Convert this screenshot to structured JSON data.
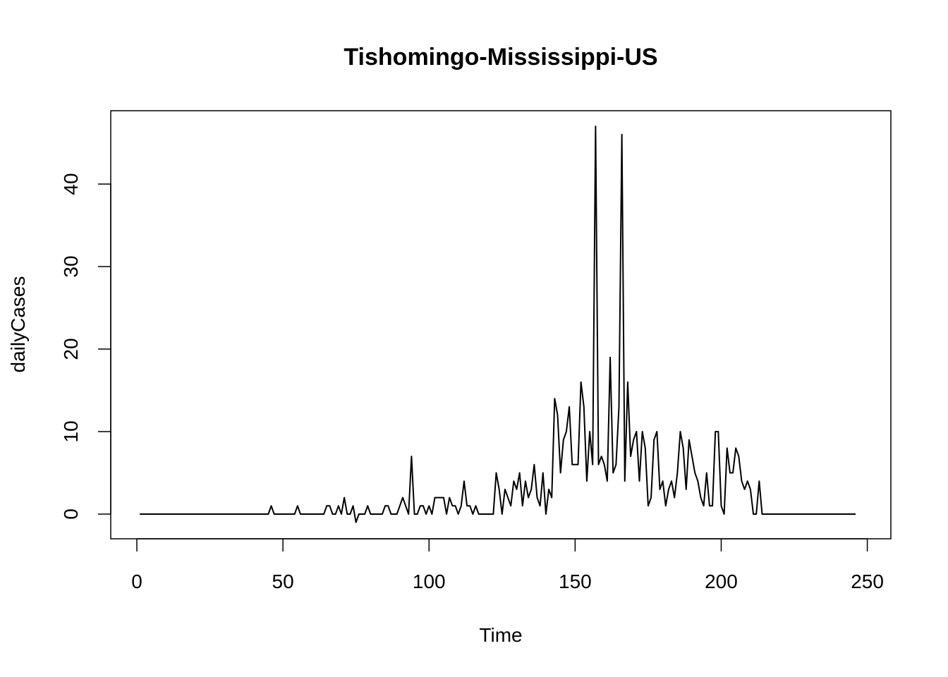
{
  "chart_data": {
    "type": "line",
    "title": "Tishomingo-Mississippi-US",
    "xlabel": "Time",
    "ylabel": "dailyCases",
    "xlim": [
      1,
      248
    ],
    "ylim": [
      -1,
      47
    ],
    "xticks": [
      0,
      50,
      100,
      150,
      200,
      250
    ],
    "xtick_labels": [
      "0",
      "50",
      "100",
      "150",
      "200",
      "250"
    ],
    "yticks": [
      0,
      10,
      20,
      30,
      40
    ],
    "ytick_labels": [
      "0",
      "10",
      "20",
      "30",
      "40"
    ],
    "grid": false,
    "line_color": "#000000",
    "series": [
      {
        "x_start": 1,
        "values": [
          0,
          0,
          0,
          0,
          0,
          0,
          0,
          0,
          0,
          0,
          0,
          0,
          0,
          0,
          0,
          0,
          0,
          0,
          0,
          0,
          0,
          0,
          0,
          0,
          0,
          0,
          0,
          0,
          0,
          0,
          0,
          0,
          0,
          0,
          0,
          0,
          0,
          0,
          0,
          0,
          0,
          0,
          0,
          0,
          0,
          1,
          0,
          0,
          0,
          0,
          0,
          0,
          0,
          0,
          1,
          0,
          0,
          0,
          0,
          0,
          0,
          0,
          0,
          0,
          1,
          1,
          0,
          0,
          1,
          0,
          2,
          0,
          0,
          1,
          -1,
          0,
          0,
          0,
          1,
          0,
          0,
          0,
          0,
          0,
          1,
          1,
          0,
          0,
          0,
          1,
          2,
          1,
          0,
          7,
          0,
          0,
          1,
          1,
          0,
          1,
          0,
          2,
          2,
          2,
          2,
          0,
          2,
          1,
          1,
          0,
          1,
          4,
          1,
          1,
          0,
          1,
          0,
          0,
          0,
          0,
          0,
          0,
          5,
          3,
          0,
          3,
          2,
          1,
          4,
          3,
          5,
          1,
          4,
          2,
          3,
          6,
          2,
          1,
          5,
          0,
          3,
          2,
          14,
          12,
          5,
          9,
          10,
          13,
          6,
          6,
          6,
          16,
          13,
          4,
          10,
          6,
          47,
          6,
          7,
          6,
          4,
          19,
          5,
          6,
          13,
          46,
          4,
          16,
          7,
          9,
          10,
          4,
          10,
          8,
          1,
          2,
          9,
          10,
          3,
          4,
          1,
          3,
          4,
          2,
          5,
          10,
          8,
          3,
          9,
          7,
          5,
          4,
          2,
          1,
          5,
          1,
          1,
          10,
          10,
          1,
          0,
          8,
          5,
          5,
          8,
          7,
          4,
          3,
          4,
          3,
          0,
          0,
          4,
          0,
          0,
          0,
          0,
          0,
          0,
          0,
          0,
          0,
          0,
          0,
          0,
          0,
          0,
          0,
          0,
          0,
          0,
          0,
          0,
          0,
          0,
          0,
          0,
          0,
          0,
          0,
          0,
          0,
          0,
          0,
          0,
          0
        ]
      }
    ]
  }
}
